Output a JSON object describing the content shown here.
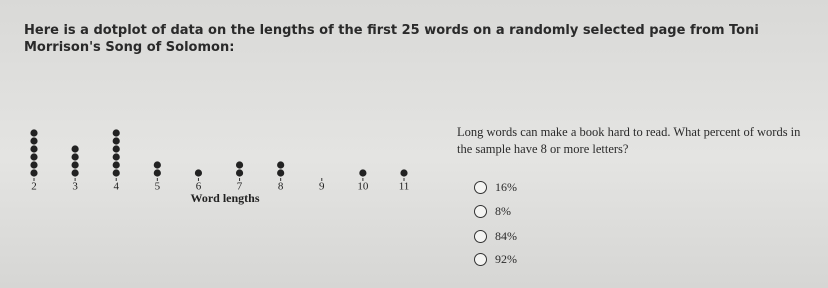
{
  "prompt": "Here is a dotplot of data on the lengths of the first 25 words on a randomly selected page from Toni Morrison's Song of Solomon:",
  "question": "Long words can make a book hard to read. What percent of words in the sample have 8 or more letters?",
  "choices": [
    "16%",
    "8%",
    "84%",
    "92%"
  ],
  "chart_data": {
    "type": "dotplot",
    "x_label": "Word lengths",
    "x": [
      2,
      3,
      4,
      5,
      6,
      7,
      8,
      9,
      10,
      11
    ],
    "values": [
      6,
      4,
      6,
      2,
      1,
      2,
      2,
      0,
      1,
      1
    ],
    "xlim": [
      2,
      11
    ],
    "xticks": [
      2,
      3,
      4,
      5,
      6,
      7,
      8,
      9,
      10,
      11
    ],
    "color": "#222222"
  }
}
